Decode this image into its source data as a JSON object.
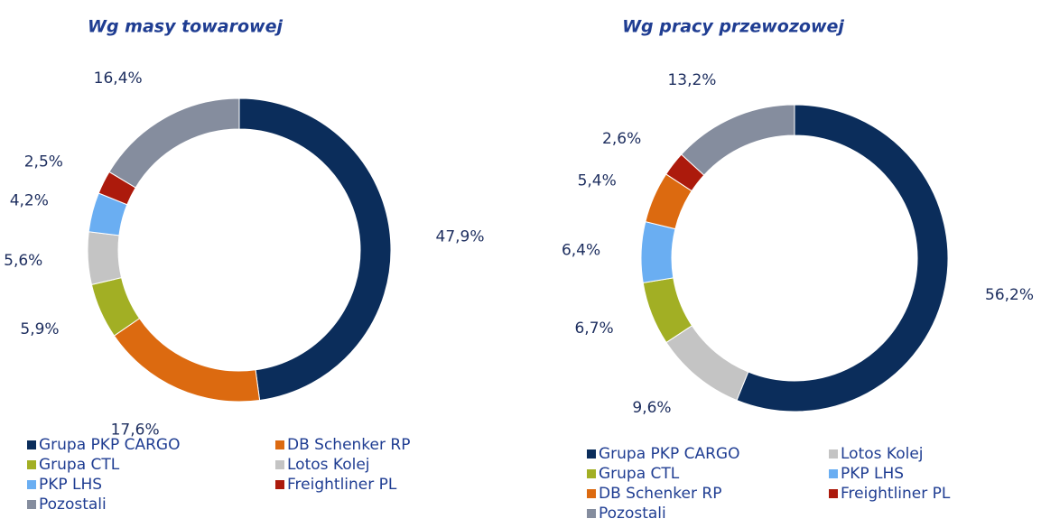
{
  "chart_data": [
    {
      "type": "pie",
      "donut": true,
      "title": "Wg masy towarowej",
      "categories": [
        "Grupa PKP CARGO",
        "DB Schenker RP",
        "Grupa CTL",
        "Lotos Kolej",
        "PKP LHS",
        "Freightliner PL",
        "Pozostali"
      ],
      "values": [
        47.9,
        17.6,
        5.9,
        5.6,
        4.2,
        2.5,
        16.4
      ],
      "value_labels": [
        "47,9%",
        "17,6%",
        "5,9%",
        "5,6%",
        "4,2%",
        "2,5%",
        "16,4%"
      ],
      "colors": [
        "#0b2d5b",
        "#dc6a10",
        "#a2af24",
        "#c4c4c4",
        "#6aaef2",
        "#ac1a0c",
        "#858d9e"
      ],
      "legend": "bottom"
    },
    {
      "type": "pie",
      "donut": true,
      "title": "Wg pracy przewozowej",
      "categories": [
        "Grupa PKP CARGO",
        "Lotos Kolej",
        "Grupa CTL",
        "PKP LHS",
        "DB Schenker RP",
        "Freightliner PL",
        "Pozostali"
      ],
      "values": [
        56.2,
        9.6,
        6.7,
        6.4,
        5.4,
        2.6,
        13.2
      ],
      "value_labels": [
        "56,2%",
        "9,6%",
        "6,7%",
        "6,4%",
        "5,4%",
        "2,6%",
        "13,2%"
      ],
      "colors": [
        "#0b2d5b",
        "#c4c4c4",
        "#a2af24",
        "#6aaef2",
        "#dc6a10",
        "#ac1a0c",
        "#858d9e"
      ],
      "legend": "bottom"
    }
  ]
}
